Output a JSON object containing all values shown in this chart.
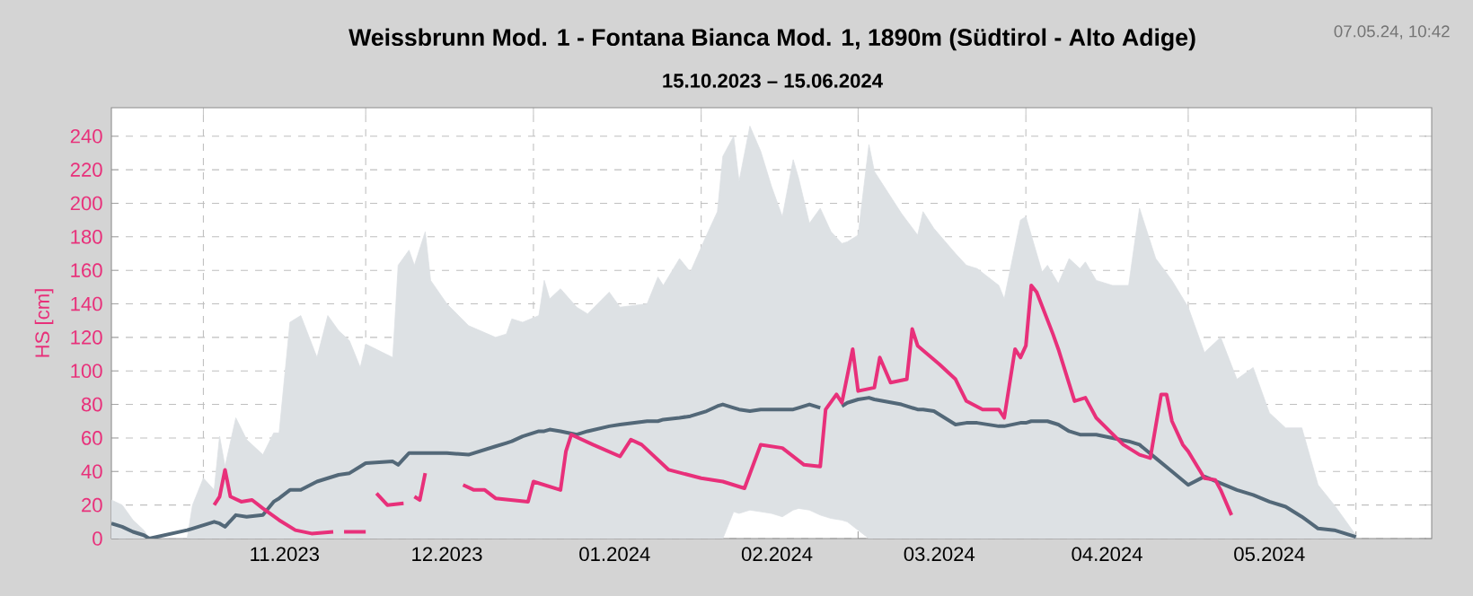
{
  "chart_data": {
    "type": "line",
    "title": "Weissbrunn Mod. 1 - Fontana Bianca Mod. 1, 1890m (Südtirol - Alto Adige)",
    "subtitle": "15.10.2023 – 15.06.2024",
    "ylabel": "HS [cm]",
    "annotations": [
      "07.05.24, 10:42"
    ],
    "xlim": [
      "2023-10-15",
      "2024-06-15"
    ],
    "xticks": [
      {
        "value": "2023-11-01",
        "label": null
      },
      {
        "value": "2023-11-16",
        "label": "11.2023"
      },
      {
        "value": "2023-12-01",
        "label": null
      },
      {
        "value": "2023-12-16",
        "label": "12.2023"
      },
      {
        "value": "2024-01-01",
        "label": null
      },
      {
        "value": "2024-01-16",
        "label": "01.2024"
      },
      {
        "value": "2024-02-01",
        "label": null
      },
      {
        "value": "2024-02-15",
        "label": "02.2024"
      },
      {
        "value": "2024-03-01",
        "label": null
      },
      {
        "value": "2024-03-16",
        "label": "03.2024"
      },
      {
        "value": "2024-04-01",
        "label": null
      },
      {
        "value": "2024-04-16",
        "label": "04.2024"
      },
      {
        "value": "2024-05-01",
        "label": null
      },
      {
        "value": "2024-05-16",
        "label": "05.2024"
      },
      {
        "value": "2024-06-01",
        "label": null
      }
    ],
    "ylim": [
      0,
      257
    ],
    "yticks": [
      0,
      20,
      40,
      60,
      80,
      100,
      120,
      140,
      160,
      180,
      200,
      220,
      240
    ],
    "grid": true,
    "series": [
      {
        "color": "#536878",
        "x": [
          "2023-10-15",
          "2023-10-17",
          "2023-10-19",
          "2023-10-21",
          "2023-10-22",
          "2023-10-29",
          "2023-10-30",
          "2023-11-01",
          "2023-11-03",
          "2023-11-04",
          "2023-11-05",
          "2023-11-07",
          "2023-11-09",
          "2023-11-12",
          "2023-11-14",
          "2023-11-15",
          "2023-11-17",
          "2023-11-19",
          "2023-11-22",
          "2023-11-24",
          "2023-11-26",
          "2023-11-28",
          "2023-11-30",
          "2023-12-01",
          "2023-12-06",
          "2023-12-07",
          "2023-12-09",
          "2023-12-10",
          "2023-12-12",
          "2023-12-13",
          "2023-12-16",
          "2023-12-20",
          "2023-12-25",
          "2023-12-27",
          "2023-12-28",
          "2023-12-30",
          "2024-01-02",
          "2024-01-03",
          "2024-01-04",
          "2024-01-06",
          "2024-01-09",
          "2024-01-11",
          "2024-01-15",
          "2024-01-17",
          "2024-01-22",
          "2024-01-24",
          "2024-01-25",
          "2024-01-28",
          "2024-01-30",
          "2024-02-02",
          "2024-02-04",
          "2024-02-05",
          "2024-02-07",
          "2024-02-08",
          "2024-02-10",
          "2024-02-12",
          "2024-02-14",
          "2024-02-16",
          "2024-02-18",
          "2024-02-19",
          "2024-02-21",
          "2024-02-23",
          "2024-02-25",
          "2024-02-27",
          "2024-02-28",
          "2024-03-01",
          "2024-03-03",
          "2024-03-04",
          "2024-03-09",
          "2024-03-12",
          "2024-03-13",
          "2024-03-15",
          "2024-03-19",
          "2024-03-21",
          "2024-03-23",
          "2024-03-27",
          "2024-03-28",
          "2024-03-31",
          "2024-04-01",
          "2024-04-02",
          "2024-04-04",
          "2024-04-05",
          "2024-04-07",
          "2024-04-09",
          "2024-04-11",
          "2024-04-12",
          "2024-04-14",
          "2024-04-17",
          "2024-04-20",
          "2024-04-22",
          "2024-04-25",
          "2024-04-28",
          "2024-05-01",
          "2024-05-04",
          "2024-05-07",
          "2024-05-10",
          "2024-05-13",
          "2024-05-16",
          "2024-05-19",
          "2024-05-22",
          "2024-05-25",
          "2024-05-28",
          "2024-06-01"
        ],
        "values": [
          9,
          7,
          4,
          2,
          0,
          5,
          6,
          8,
          10,
          9,
          7,
          14,
          13,
          14,
          22,
          24,
          29,
          29,
          34,
          36,
          38,
          39,
          43,
          45,
          46,
          44,
          51,
          51,
          51,
          51,
          51,
          50,
          55,
          57,
          58,
          61,
          64,
          64,
          65,
          64,
          62,
          64,
          67,
          68,
          70,
          70,
          71,
          72,
          73,
          76,
          79,
          80,
          78,
          77,
          76,
          77,
          77,
          77,
          77,
          78,
          80,
          78,
          null,
          79,
          81,
          83,
          84,
          83,
          80,
          77,
          77,
          76,
          68,
          69,
          69,
          67,
          67,
          69,
          69,
          70,
          70,
          70,
          68,
          64,
          62,
          62,
          62,
          60,
          58,
          56,
          48,
          40,
          32,
          37,
          33,
          29,
          26,
          22,
          19,
          13,
          6,
          5,
          1
        ],
        "upper": [
          23,
          20,
          11,
          5,
          0,
          0,
          20,
          36,
          29,
          61,
          43,
          72,
          59,
          50,
          63,
          63,
          129,
          133,
          108,
          133,
          124,
          118,
          102,
          116,
          108,
          163,
          172,
          163,
          183,
          154,
          140,
          127,
          120,
          122,
          131,
          129,
          133,
          154,
          143,
          149,
          138,
          134,
          147,
          138,
          140,
          156,
          151,
          167,
          159,
          181,
          195,
          228,
          240,
          213,
          246,
          231,
          210,
          192,
          226,
          215,
          188,
          197,
          183,
          176,
          177,
          181,
          235,
          219,
          194,
          181,
          195,
          185,
          170,
          163,
          161,
          151,
          143,
          190,
          192,
          181,
          159,
          163,
          152,
          167,
          161,
          165,
          154,
          151,
          151,
          197,
          167,
          154,
          138,
          111,
          120,
          95,
          102,
          75,
          66,
          66,
          32,
          20,
          2
        ],
        "lower": [
          0,
          0,
          0,
          0,
          0,
          0,
          0,
          0,
          0,
          0,
          0,
          0,
          0,
          0,
          0,
          0,
          0,
          0,
          0,
          0,
          0,
          0,
          0,
          0,
          0,
          0,
          0,
          0,
          0,
          0,
          0,
          0,
          0,
          0,
          0,
          0,
          0,
          0,
          0,
          0,
          0,
          0,
          0,
          0,
          0,
          0,
          0,
          0,
          0,
          0,
          0,
          0,
          16,
          15,
          17,
          16,
          15,
          13,
          17,
          18,
          17,
          14,
          12,
          11,
          10,
          5,
          0,
          0,
          0,
          0,
          0,
          0,
          0,
          0,
          0,
          0,
          0,
          0,
          0,
          0,
          0,
          0,
          0,
          0,
          0,
          0,
          0,
          0,
          0,
          0,
          0,
          0,
          0,
          0,
          0,
          0,
          0,
          0,
          0,
          0,
          0,
          0,
          0
        ]
      },
      {
        "color": "#e8307a",
        "x": [
          "2023-11-03",
          "2023-11-04",
          "2023-11-05",
          "2023-11-06",
          "2023-11-08",
          "2023-11-10",
          "2023-11-12",
          "2023-11-15",
          "2023-11-18",
          "2023-11-21",
          "2023-11-25",
          "2023-11-26",
          "2023-11-27",
          "2023-12-01",
          "2023-12-02",
          "2023-12-03",
          "2023-12-05",
          "2023-12-08",
          "2023-12-09",
          "2023-12-10",
          "2023-12-11",
          "2023-12-12",
          "2023-12-13",
          "2023-12-19",
          "2023-12-21",
          "2023-12-23",
          "2023-12-25",
          "2023-12-31",
          "2024-01-01",
          "2024-01-06",
          "2024-01-07",
          "2024-01-08",
          "2024-01-12",
          "2024-01-17",
          "2024-01-19",
          "2024-01-21",
          "2024-01-26",
          "2024-02-01",
          "2024-02-05",
          "2024-02-09",
          "2024-02-12",
          "2024-02-16",
          "2024-02-20",
          "2024-02-23",
          "2024-02-24",
          "2024-02-26",
          "2024-02-27",
          "2024-02-29",
          "2024-03-01",
          "2024-03-04",
          "2024-03-05",
          "2024-03-07",
          "2024-03-10",
          "2024-03-11",
          "2024-03-12",
          "2024-03-16",
          "2024-03-19",
          "2024-03-21",
          "2024-03-24",
          "2024-03-27",
          "2024-03-28",
          "2024-03-30",
          "2024-03-31",
          "2024-04-01",
          "2024-04-02",
          "2024-04-03",
          "2024-04-06",
          "2024-04-07",
          "2024-04-10",
          "2024-04-12",
          "2024-04-14",
          "2024-04-19",
          "2024-04-22",
          "2024-04-24",
          "2024-04-26",
          "2024-04-27",
          "2024-04-28",
          "2024-04-30",
          "2024-05-01",
          "2024-05-04",
          "2024-05-06",
          "2024-05-07",
          "2024-05-09"
        ],
        "values": [
          20,
          25,
          41,
          25,
          22,
          23,
          18,
          11,
          5,
          3,
          4,
          null,
          4,
          4,
          null,
          27,
          20,
          21,
          null,
          25,
          23,
          39,
          null,
          32,
          29,
          29,
          24,
          22,
          34,
          29,
          52,
          62,
          56,
          49,
          59,
          56,
          41,
          36,
          34,
          30,
          56,
          54,
          44,
          43,
          77,
          86,
          81,
          113,
          88,
          90,
          108,
          93,
          95,
          125,
          115,
          104,
          95,
          82,
          77,
          77,
          72,
          113,
          108,
          115,
          151,
          147,
          122,
          113,
          82,
          84,
          72,
          56,
          50,
          48,
          86,
          86,
          70,
          56,
          52,
          36,
          35,
          29,
          14
        ]
      }
    ]
  }
}
